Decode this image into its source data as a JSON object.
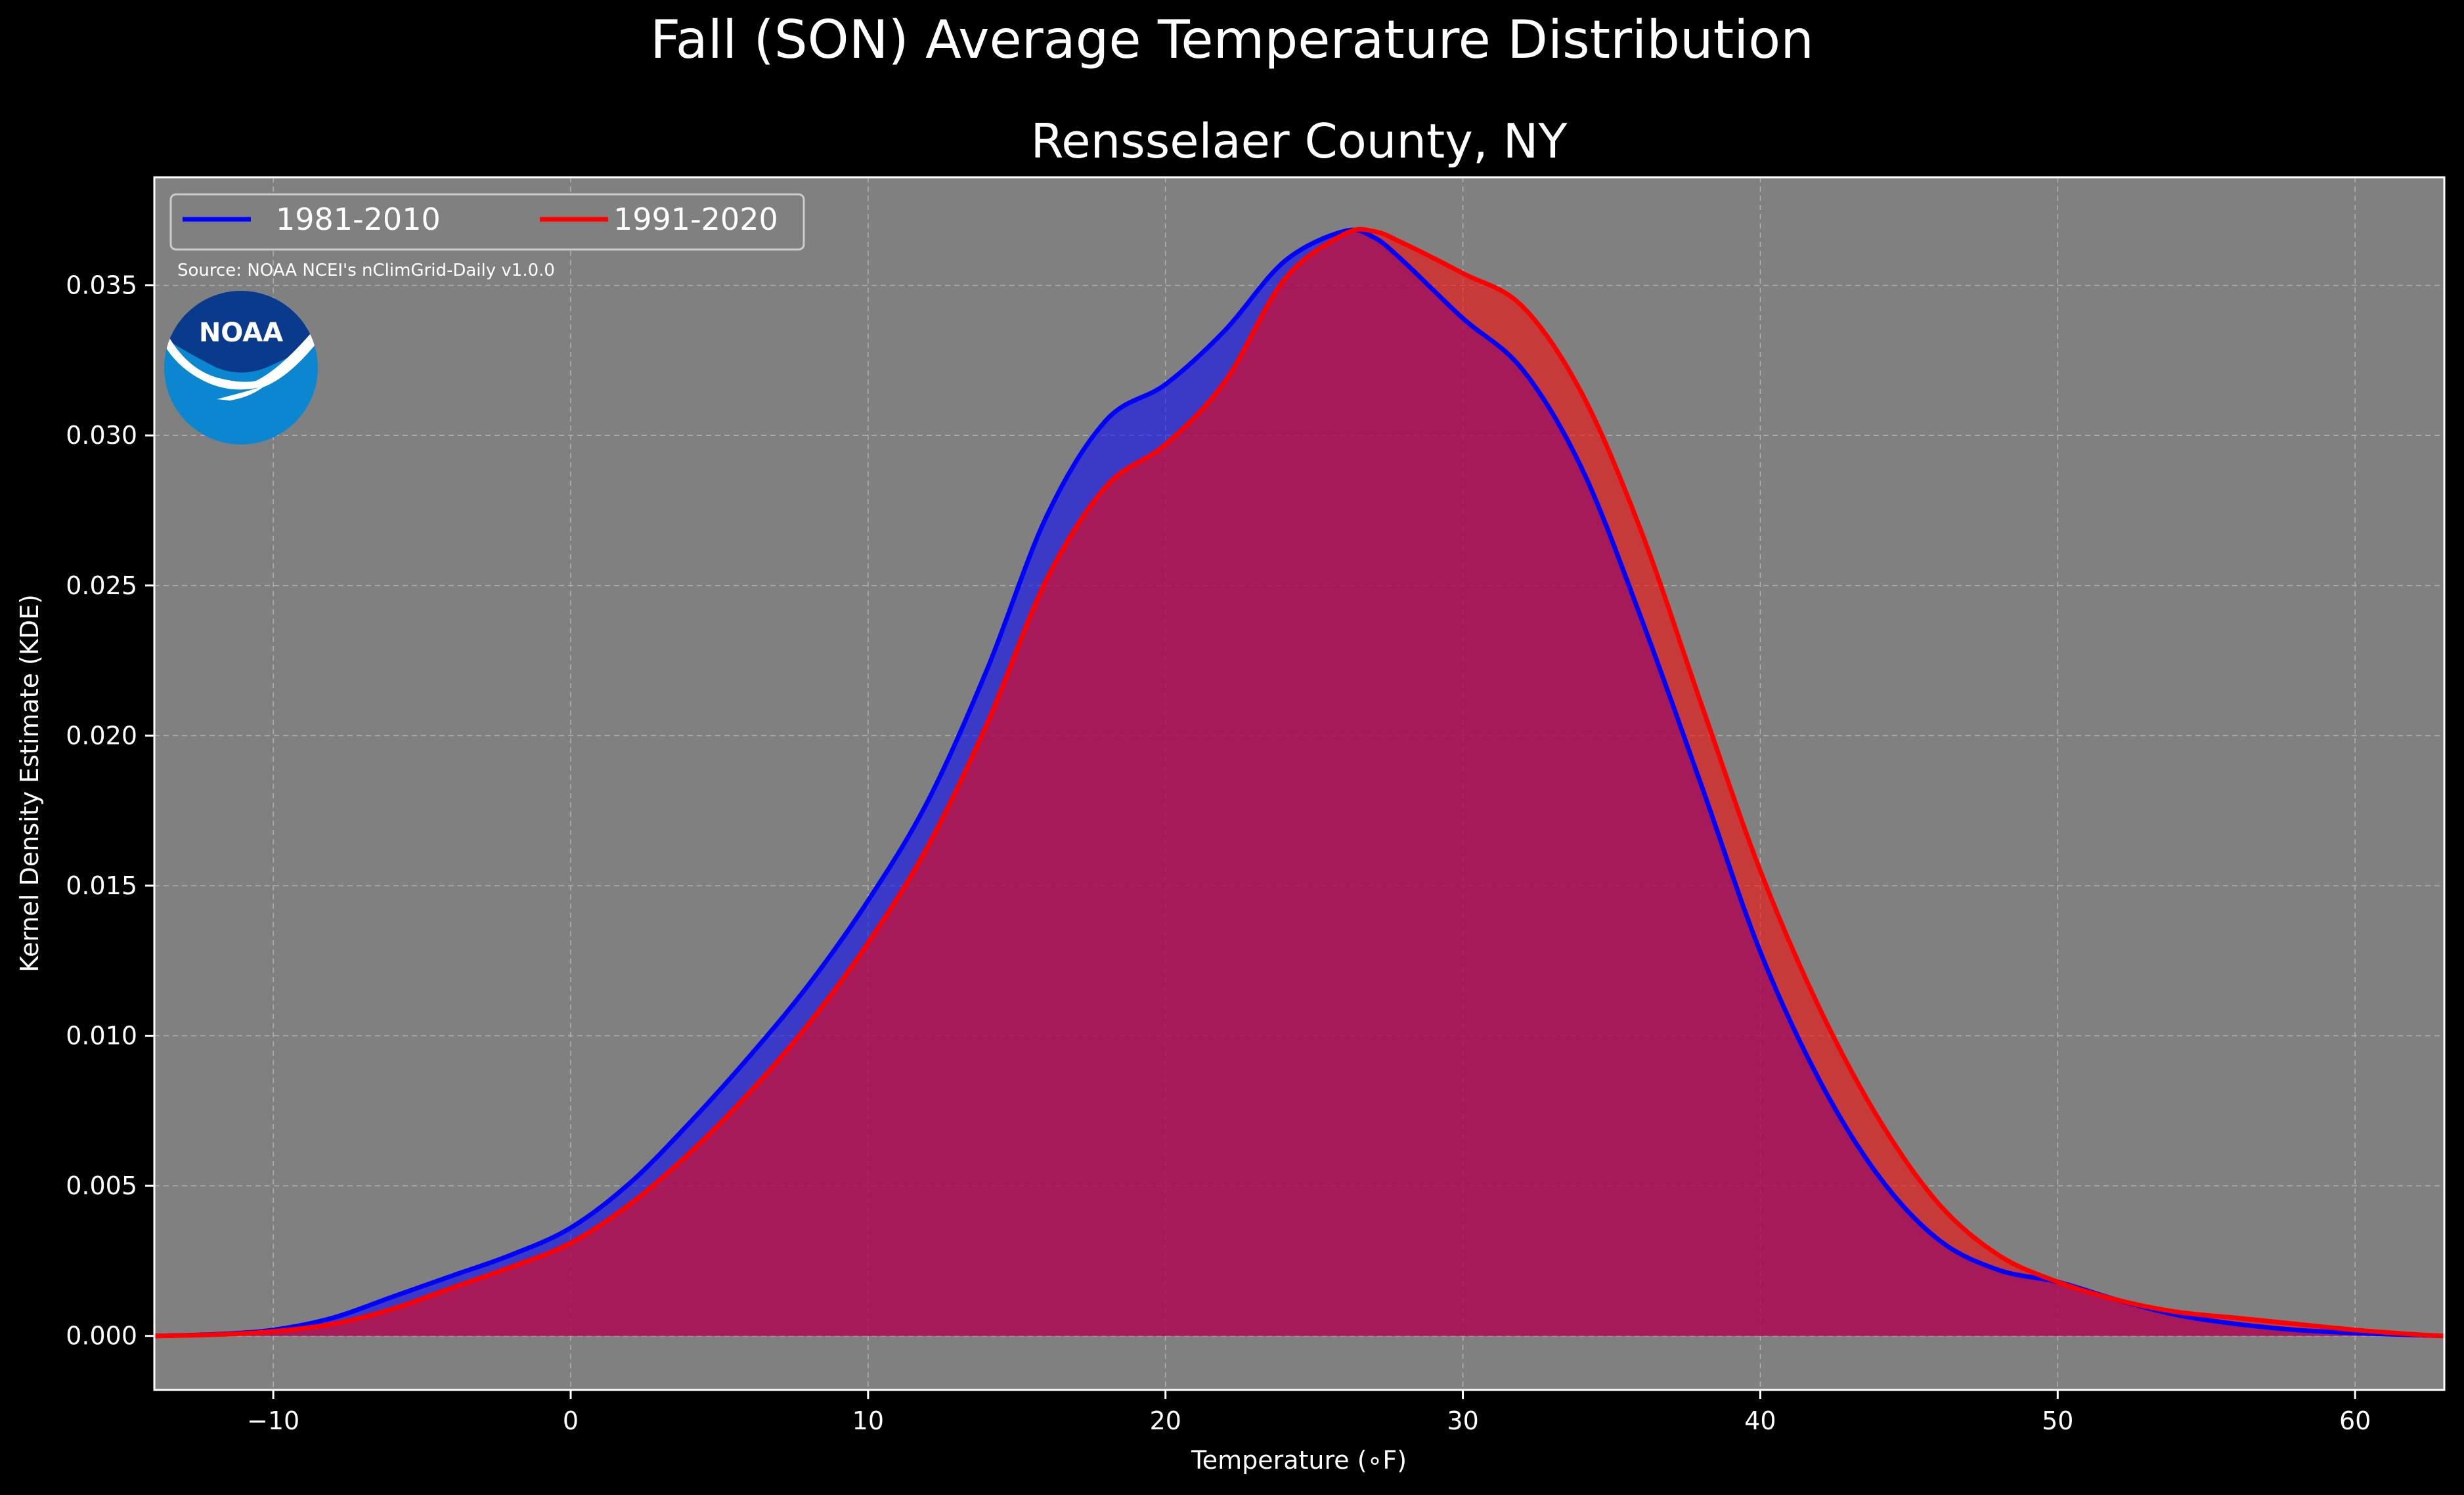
{
  "chart_data": {
    "type": "area",
    "title": "Fall (SON) Average Temperature Distribution",
    "subtitle": "Rensselaer County, NY",
    "xlabel": "Temperature (∘F)",
    "ylabel": "Kernel Density Estimate (KDE)",
    "xlim": [
      -14,
      63
    ],
    "ylim": [
      -0.0018,
      0.0386
    ],
    "xticks": [
      -10,
      0,
      10,
      20,
      30,
      40,
      50,
      60
    ],
    "xtick_labels": [
      "−10",
      "0",
      "10",
      "20",
      "30",
      "40",
      "50",
      "60"
    ],
    "yticks": [
      0.0,
      0.005,
      0.01,
      0.015,
      0.02,
      0.025,
      0.03,
      0.035
    ],
    "ytick_labels": [
      "0.000",
      "0.005",
      "0.010",
      "0.015",
      "0.020",
      "0.025",
      "0.030",
      "0.035"
    ],
    "grid": true,
    "legend_position": "top-left",
    "source_note": "Source: NOAA NCEI's nClimGrid-Daily v1.0.0",
    "logo_text": "NOAA",
    "colors": {
      "figure_background": "#000000",
      "plot_background": "#808080",
      "series_1981": "#0000ff",
      "series_1991": "#ff0000",
      "grid": "#b0b0b0",
      "logo_dark": "#0a3a8c",
      "logo_light": "#0a87d0"
    },
    "series": [
      {
        "name": "1981-2010",
        "color": "#0000ff",
        "x": [
          -14,
          -12,
          -10,
          -8,
          -6,
          -4,
          -2,
          0,
          2,
          4,
          6,
          8,
          10,
          12,
          14,
          16,
          18,
          20,
          22,
          24,
          26,
          27,
          28,
          30,
          32,
          34,
          36,
          38,
          40,
          42,
          44,
          46,
          48,
          50,
          52,
          54,
          56,
          58,
          60,
          62,
          63
        ],
        "y": [
          0.0,
          5e-05,
          0.0002,
          0.0006,
          0.0013,
          0.002,
          0.0027,
          0.0036,
          0.0051,
          0.0071,
          0.0093,
          0.0117,
          0.0145,
          0.0178,
          0.0222,
          0.0273,
          0.0305,
          0.0317,
          0.0335,
          0.0358,
          0.0368,
          0.0366,
          0.0358,
          0.0339,
          0.0322,
          0.0289,
          0.0239,
          0.0184,
          0.0128,
          0.0085,
          0.0053,
          0.0032,
          0.0022,
          0.0018,
          0.0012,
          0.0007,
          0.0004,
          0.0002,
          0.0001,
          3e-05,
          0.0
        ]
      },
      {
        "name": "1991-2020",
        "color": "#ff0000",
        "x": [
          -14,
          -12,
          -10,
          -8,
          -6,
          -4,
          -2,
          0,
          2,
          4,
          6,
          8,
          10,
          12,
          14,
          16,
          18,
          20,
          22,
          24,
          26,
          27,
          28,
          30,
          32,
          34,
          36,
          38,
          40,
          42,
          44,
          46,
          48,
          50,
          52,
          54,
          56,
          58,
          60,
          62,
          63
        ],
        "y": [
          0.0,
          4e-05,
          0.00015,
          0.0004,
          0.0009,
          0.0016,
          0.0023,
          0.0031,
          0.0044,
          0.0061,
          0.0081,
          0.0104,
          0.0131,
          0.0163,
          0.0204,
          0.0252,
          0.0283,
          0.0297,
          0.0318,
          0.0352,
          0.0367,
          0.0368,
          0.0364,
          0.0354,
          0.0343,
          0.0314,
          0.0268,
          0.0211,
          0.0155,
          0.0109,
          0.0072,
          0.0044,
          0.0027,
          0.0018,
          0.0012,
          0.0008,
          0.0006,
          0.0004,
          0.0002,
          5e-05,
          0.0
        ]
      }
    ]
  }
}
